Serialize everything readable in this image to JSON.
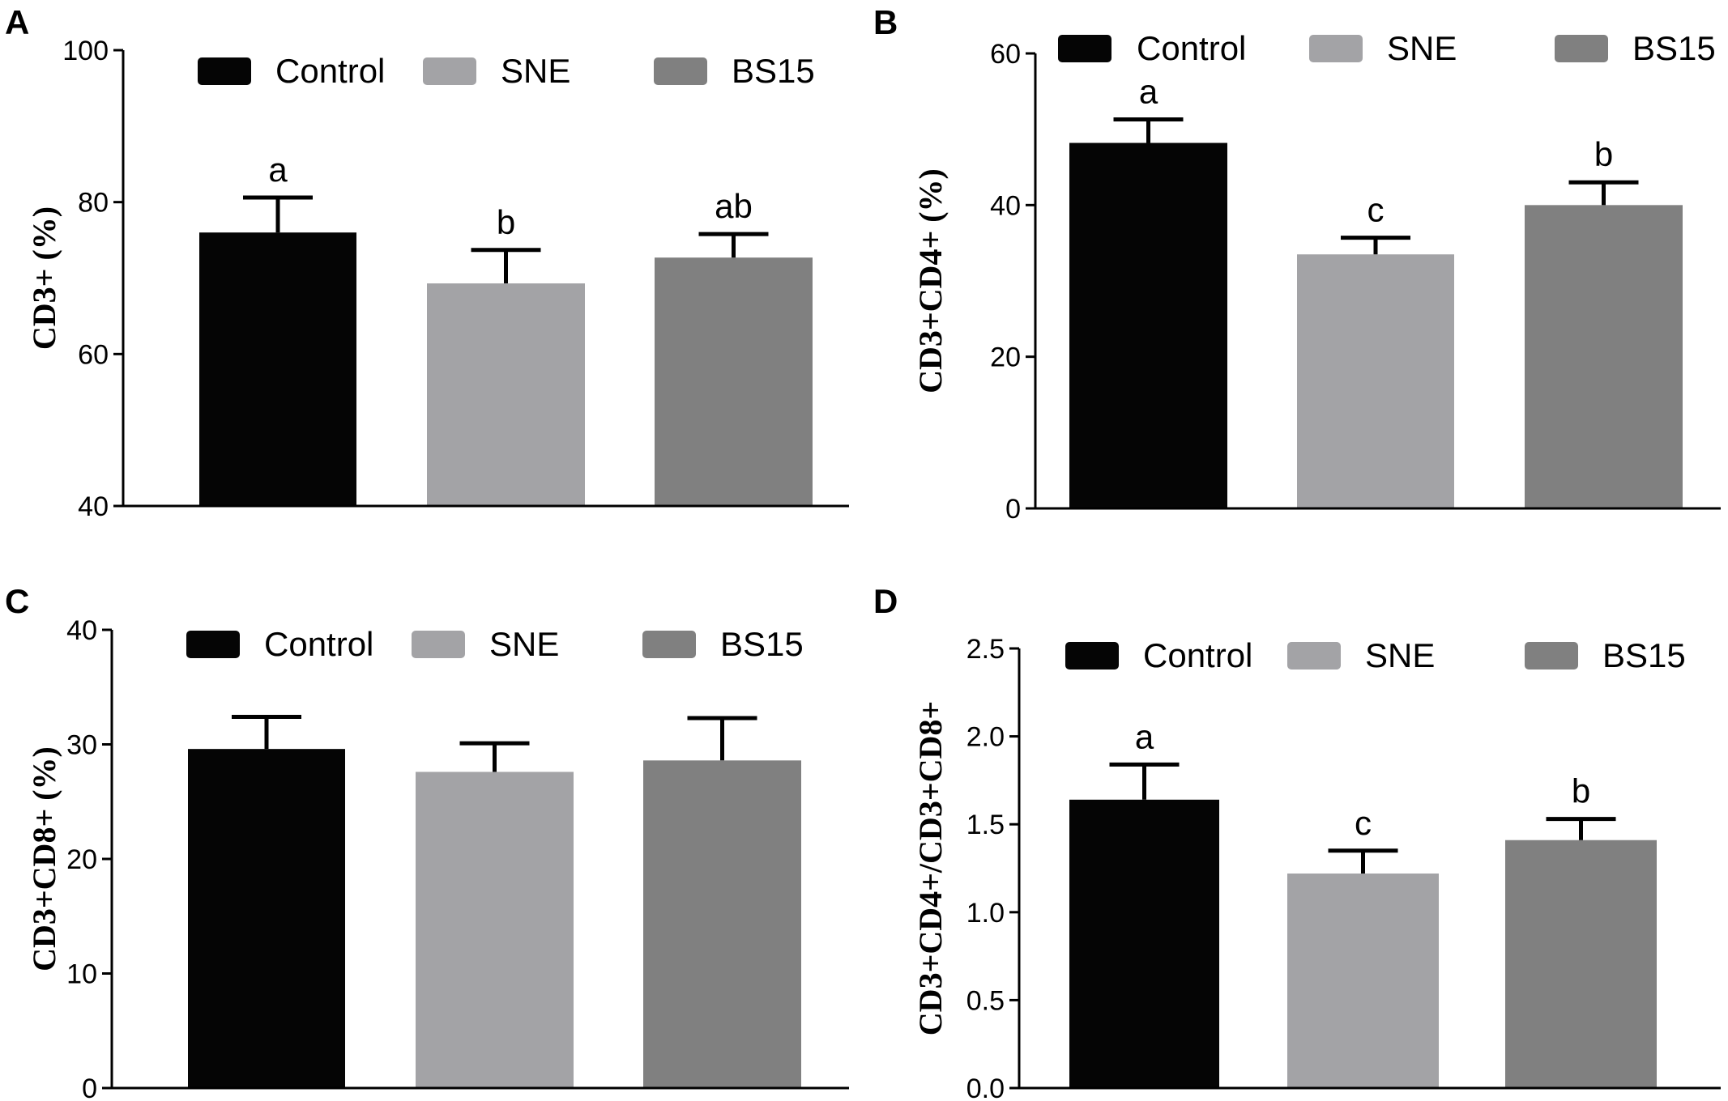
{
  "colors": {
    "Control": "#050505",
    "SNE": "#a3a3a6",
    "BS15": "#808080",
    "axis": "#000000"
  },
  "chart_data": [
    {
      "panel": "A",
      "type": "bar",
      "ylabel": "CD3+ (%)",
      "ylim": [
        40,
        100
      ],
      "yticks": [
        40,
        60,
        80,
        100
      ],
      "categories": [
        "Control",
        "SNE",
        "BS15"
      ],
      "values": [
        76,
        69.3,
        72.7
      ],
      "errors": [
        4.6,
        4.4,
        3.1
      ],
      "significance": [
        "a",
        "b",
        "ab"
      ],
      "legend": [
        "Control",
        "SNE",
        "BS15"
      ]
    },
    {
      "panel": "B",
      "type": "bar",
      "ylabel": "CD3+CD4+ (%)",
      "ylim": [
        0,
        60
      ],
      "yticks": [
        0,
        20,
        40,
        60
      ],
      "categories": [
        "Control",
        "SNE",
        "BS15"
      ],
      "values": [
        48.2,
        33.5,
        40
      ],
      "errors": [
        3.1,
        2.2,
        3
      ],
      "significance": [
        "a",
        "c",
        "b"
      ],
      "legend": [
        "Control",
        "SNE",
        "BS15"
      ]
    },
    {
      "panel": "C",
      "type": "bar",
      "ylabel": "CD3+CD8+ (%)",
      "ylim": [
        0,
        40
      ],
      "yticks": [
        0,
        10,
        20,
        30,
        40
      ],
      "categories": [
        "Control",
        "SNE",
        "BS15"
      ],
      "values": [
        29.6,
        27.6,
        28.6
      ],
      "errors": [
        2.8,
        2.5,
        3.7
      ],
      "significance": [
        "",
        "",
        ""
      ],
      "legend": [
        "Control",
        "SNE",
        "BS15"
      ]
    },
    {
      "panel": "D",
      "type": "bar",
      "ylabel": "CD3+CD4+/CD3+CD8+",
      "ylim": [
        0,
        2.5
      ],
      "yticks": [
        "0.0",
        "0.5",
        "1.0",
        "1.5",
        "2.0",
        "2.5"
      ],
      "categories": [
        "Control",
        "SNE",
        "BS15"
      ],
      "values": [
        1.64,
        1.22,
        1.41
      ],
      "errors": [
        0.2,
        0.13,
        0.12
      ],
      "significance": [
        "a",
        "c",
        "b"
      ],
      "legend": [
        "Control",
        "SNE",
        "BS15"
      ]
    }
  ]
}
